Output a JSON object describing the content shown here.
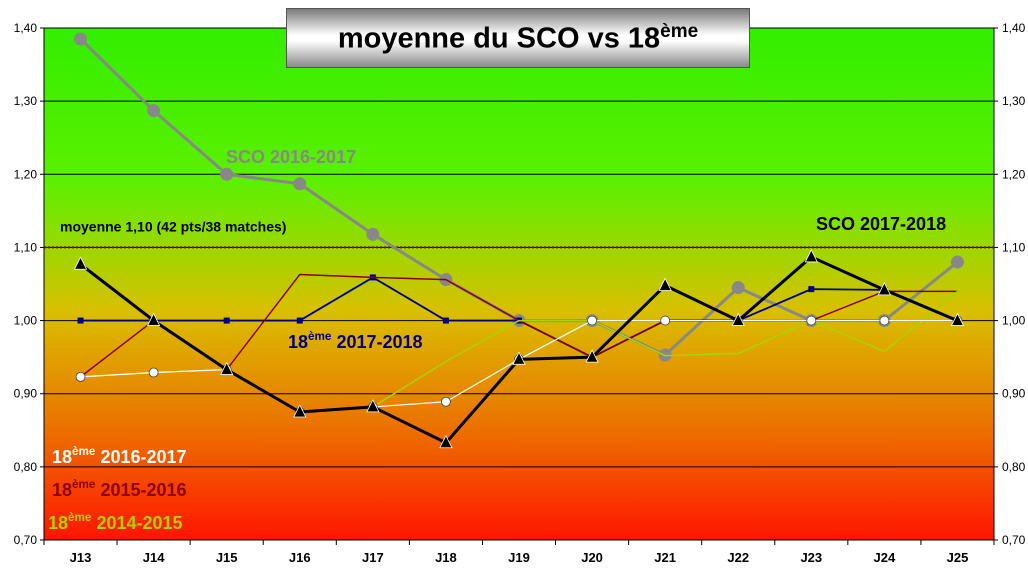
{
  "title": {
    "main": "moyenne du SCO vs 18",
    "sup": "ème"
  },
  "chart_data": {
    "type": "line",
    "categories": [
      "J13",
      "J14",
      "J15",
      "J16",
      "J17",
      "J18",
      "J19",
      "J20",
      "J21",
      "J22",
      "J23",
      "J24",
      "J25"
    ],
    "ylim": [
      0.7,
      1.4
    ],
    "yticks": [
      "0,70",
      "0,80",
      "0,90",
      "1,00",
      "1,10",
      "1,20",
      "1,30",
      "1,40"
    ],
    "ytick_values": [
      0.7,
      0.8,
      0.9,
      1.0,
      1.1,
      1.2,
      1.3,
      1.4
    ],
    "grid": true,
    "secondary_axis": true,
    "reference_line": {
      "value": 1.1,
      "label": "moyenne 1,10 (42 pts/38 matches)",
      "color": "#8b0000"
    },
    "background_gradient": [
      "#33ee00",
      "#5cf000",
      "#d8c000",
      "#ee6a00",
      "#ff1500"
    ],
    "series": [
      {
        "key": "sco_2016_2017",
        "name": "SCO 2016-2017",
        "color": "#888888",
        "marker": "circle",
        "values": [
          1.385,
          1.287,
          1.2,
          1.187,
          1.118,
          1.056,
          1.0,
          1.0,
          0.953,
          1.045,
          1.0,
          1.0,
          1.08
        ]
      },
      {
        "key": "eighteenth_2017_2018",
        "name_main": "18",
        "name_sup": "ème",
        "name_rest": " 2017-2018",
        "color": "#000080",
        "marker": "square",
        "values": [
          1.0,
          1.0,
          1.0,
          1.0,
          1.059,
          1.0,
          1.0,
          0.95,
          1.0,
          1.0,
          1.043,
          1.042,
          1.0
        ]
      },
      {
        "key": "eighteenth_2015_2016",
        "name_main": "18",
        "name_sup": "ème",
        "name_rest": " 2015-2016",
        "color": "#8b0000",
        "marker": "none",
        "values": [
          0.923,
          1.0,
          0.933,
          1.063,
          1.059,
          1.056,
          1.0,
          0.95,
          1.0,
          1.0,
          1.0,
          1.04,
          1.04
        ]
      },
      {
        "key": "eighteenth_2014_2015",
        "name_main": "18",
        "name_sup": "ème",
        "name_rest": " 2014-2015",
        "color": "#a8d400",
        "marker": "none",
        "values": [
          0.923,
          0.929,
          0.933,
          0.875,
          0.882,
          0.944,
          1.0,
          1.0,
          0.952,
          0.955,
          1.0,
          0.958,
          1.04
        ]
      },
      {
        "key": "eighteenth_2016_2017",
        "name_main": "18",
        "name_sup": "ème",
        "name_rest": " 2016-2017",
        "color": "#ffffff",
        "marker": "circle-open",
        "values": [
          0.923,
          0.929,
          0.933,
          0.875,
          0.882,
          0.889,
          0.947,
          1.0,
          1.0,
          1.0,
          1.0,
          1.0,
          1.0
        ]
      },
      {
        "key": "sco_2017_2018",
        "name": "SCO 2017-2018",
        "color": "#000000",
        "marker": "triangle",
        "values": [
          1.077,
          1.0,
          0.933,
          0.875,
          0.882,
          0.833,
          0.947,
          0.95,
          1.048,
          1.0,
          1.087,
          1.042,
          1.0
        ]
      }
    ]
  }
}
